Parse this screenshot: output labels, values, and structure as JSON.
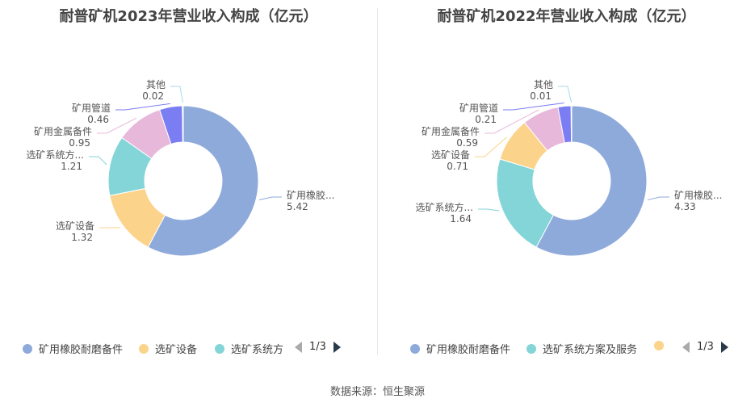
{
  "source_label": "数据来源：恒生聚源",
  "chart_data": [
    {
      "type": "pie",
      "title": "耐普矿机2023年营业收入构成（亿元）",
      "slices": [
        {
          "name": "矿用橡胶耐磨备件",
          "label": "矿用橡胶...",
          "value": 5.42,
          "color": "#8eaadb"
        },
        {
          "name": "选矿设备",
          "label": "选矿设备",
          "value": 1.32,
          "color": "#fcd38b"
        },
        {
          "name": "选矿系统方案及服务",
          "label": "选矿系统方...",
          "value": 1.21,
          "color": "#84d5d8"
        },
        {
          "name": "矿用金属备件",
          "label": "矿用金属备件",
          "value": 0.95,
          "color": "#e7b8da"
        },
        {
          "name": "矿用管道",
          "label": "矿用管道",
          "value": 0.46,
          "color": "#7b7ef3"
        },
        {
          "name": "其他",
          "label": "其他",
          "value": 0.02,
          "color": "#a7dbe6"
        }
      ],
      "legend": {
        "items": [
          "矿用橡胶耐磨备件",
          "选矿设备",
          "选矿系统方"
        ],
        "colors": [
          "#8eaadb",
          "#fcd38b",
          "#84d5d8"
        ],
        "page": "1/3"
      }
    },
    {
      "type": "pie",
      "title": "耐普矿机2022年营业收入构成（亿元）",
      "slices": [
        {
          "name": "矿用橡胶耐磨备件",
          "label": "矿用橡胶...",
          "value": 4.33,
          "color": "#8eaadb"
        },
        {
          "name": "选矿系统方案及服务",
          "label": "选矿系统方...",
          "value": 1.64,
          "color": "#84d5d8"
        },
        {
          "name": "选矿设备",
          "label": "选矿设备",
          "value": 0.71,
          "color": "#fcd38b"
        },
        {
          "name": "矿用金属备件",
          "label": "矿用金属备件",
          "value": 0.59,
          "color": "#e7b8da"
        },
        {
          "name": "矿用管道",
          "label": "矿用管道",
          "value": 0.21,
          "color": "#7b7ef3"
        },
        {
          "name": "其他",
          "label": "其他",
          "value": 0.01,
          "color": "#a7dbe6"
        }
      ],
      "legend": {
        "items": [
          "矿用橡胶耐磨备件",
          "选矿系统方案及服务",
          ""
        ],
        "colors": [
          "#8eaadb",
          "#84d5d8",
          "#fcd38b"
        ],
        "page": "1/3"
      }
    }
  ]
}
